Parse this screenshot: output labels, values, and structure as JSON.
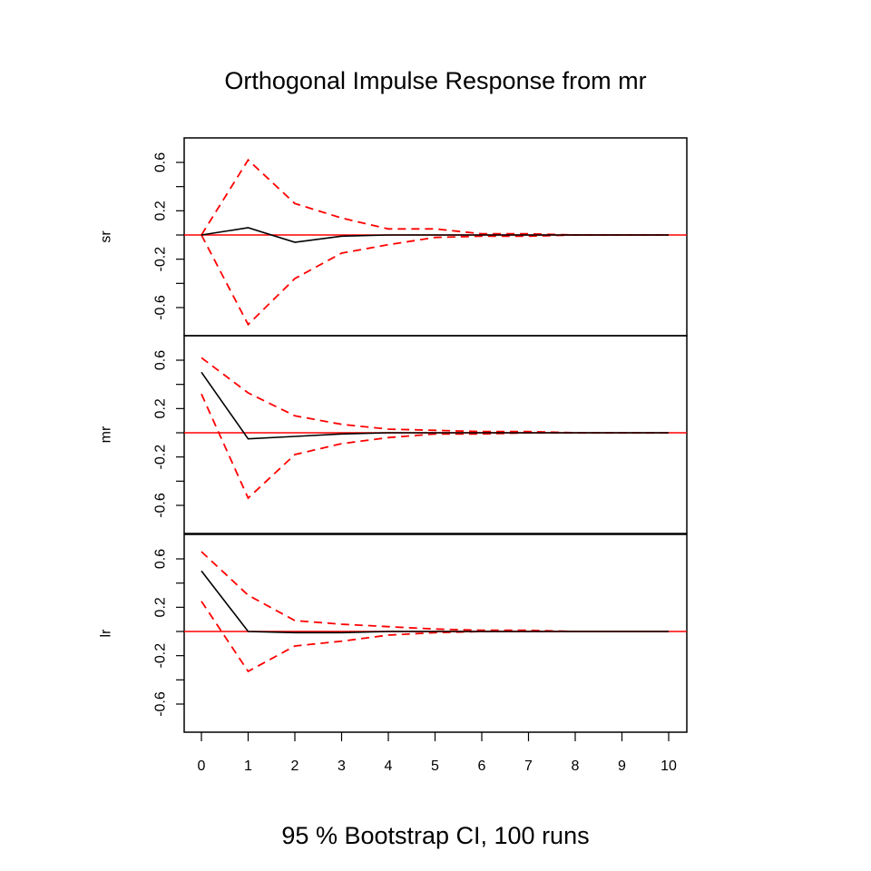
{
  "chart_data": {
    "type": "line",
    "title": "Orthogonal Impulse Response from mr",
    "subtitle": "95 % Bootstrap CI,  100 runs",
    "x": [
      0,
      1,
      2,
      3,
      4,
      5,
      6,
      7,
      8,
      9,
      10
    ],
    "xlim": [
      0,
      10
    ],
    "xticks": [
      "0",
      "1",
      "2",
      "3",
      "4",
      "5",
      "6",
      "7",
      "8",
      "9",
      "10"
    ],
    "ylim": [
      -0.75,
      0.72
    ],
    "yticks": [
      "-0.6",
      "-0.2",
      "0.2",
      "0.6"
    ],
    "colors": {
      "response": "#000000",
      "ci": "#ff0000",
      "zero_line": "#ff0000"
    },
    "panels": [
      {
        "ylabel": "sr",
        "response": [
          0,
          0.06,
          -0.06,
          -0.01,
          0,
          0,
          0,
          0,
          0,
          0,
          0
        ],
        "upper": [
          0,
          0.62,
          0.26,
          0.14,
          0.05,
          0.05,
          0.01,
          0.01,
          0,
          0,
          0
        ],
        "lower": [
          0,
          -0.74,
          -0.36,
          -0.15,
          -0.08,
          -0.02,
          -0.01,
          -0.01,
          0,
          0,
          0
        ]
      },
      {
        "ylabel": "mr",
        "response": [
          0.5,
          -0.05,
          -0.03,
          -0.01,
          0,
          0,
          0,
          0,
          0,
          0,
          0
        ],
        "upper": [
          0.62,
          0.33,
          0.14,
          0.07,
          0.03,
          0.02,
          0.01,
          0.01,
          0,
          0,
          0
        ],
        "lower": [
          0.32,
          -0.54,
          -0.18,
          -0.09,
          -0.04,
          -0.01,
          -0.01,
          0,
          0,
          0,
          0
        ]
      },
      {
        "ylabel": "lr",
        "response": [
          0.5,
          0,
          -0.01,
          -0.01,
          0,
          0,
          0,
          0,
          0,
          0,
          0
        ],
        "upper": [
          0.66,
          0.3,
          0.09,
          0.06,
          0.04,
          0.02,
          0.01,
          0.01,
          0,
          0,
          0
        ],
        "lower": [
          0.25,
          -0.33,
          -0.12,
          -0.08,
          -0.03,
          -0.01,
          0,
          0,
          0,
          0,
          0
        ]
      }
    ]
  }
}
